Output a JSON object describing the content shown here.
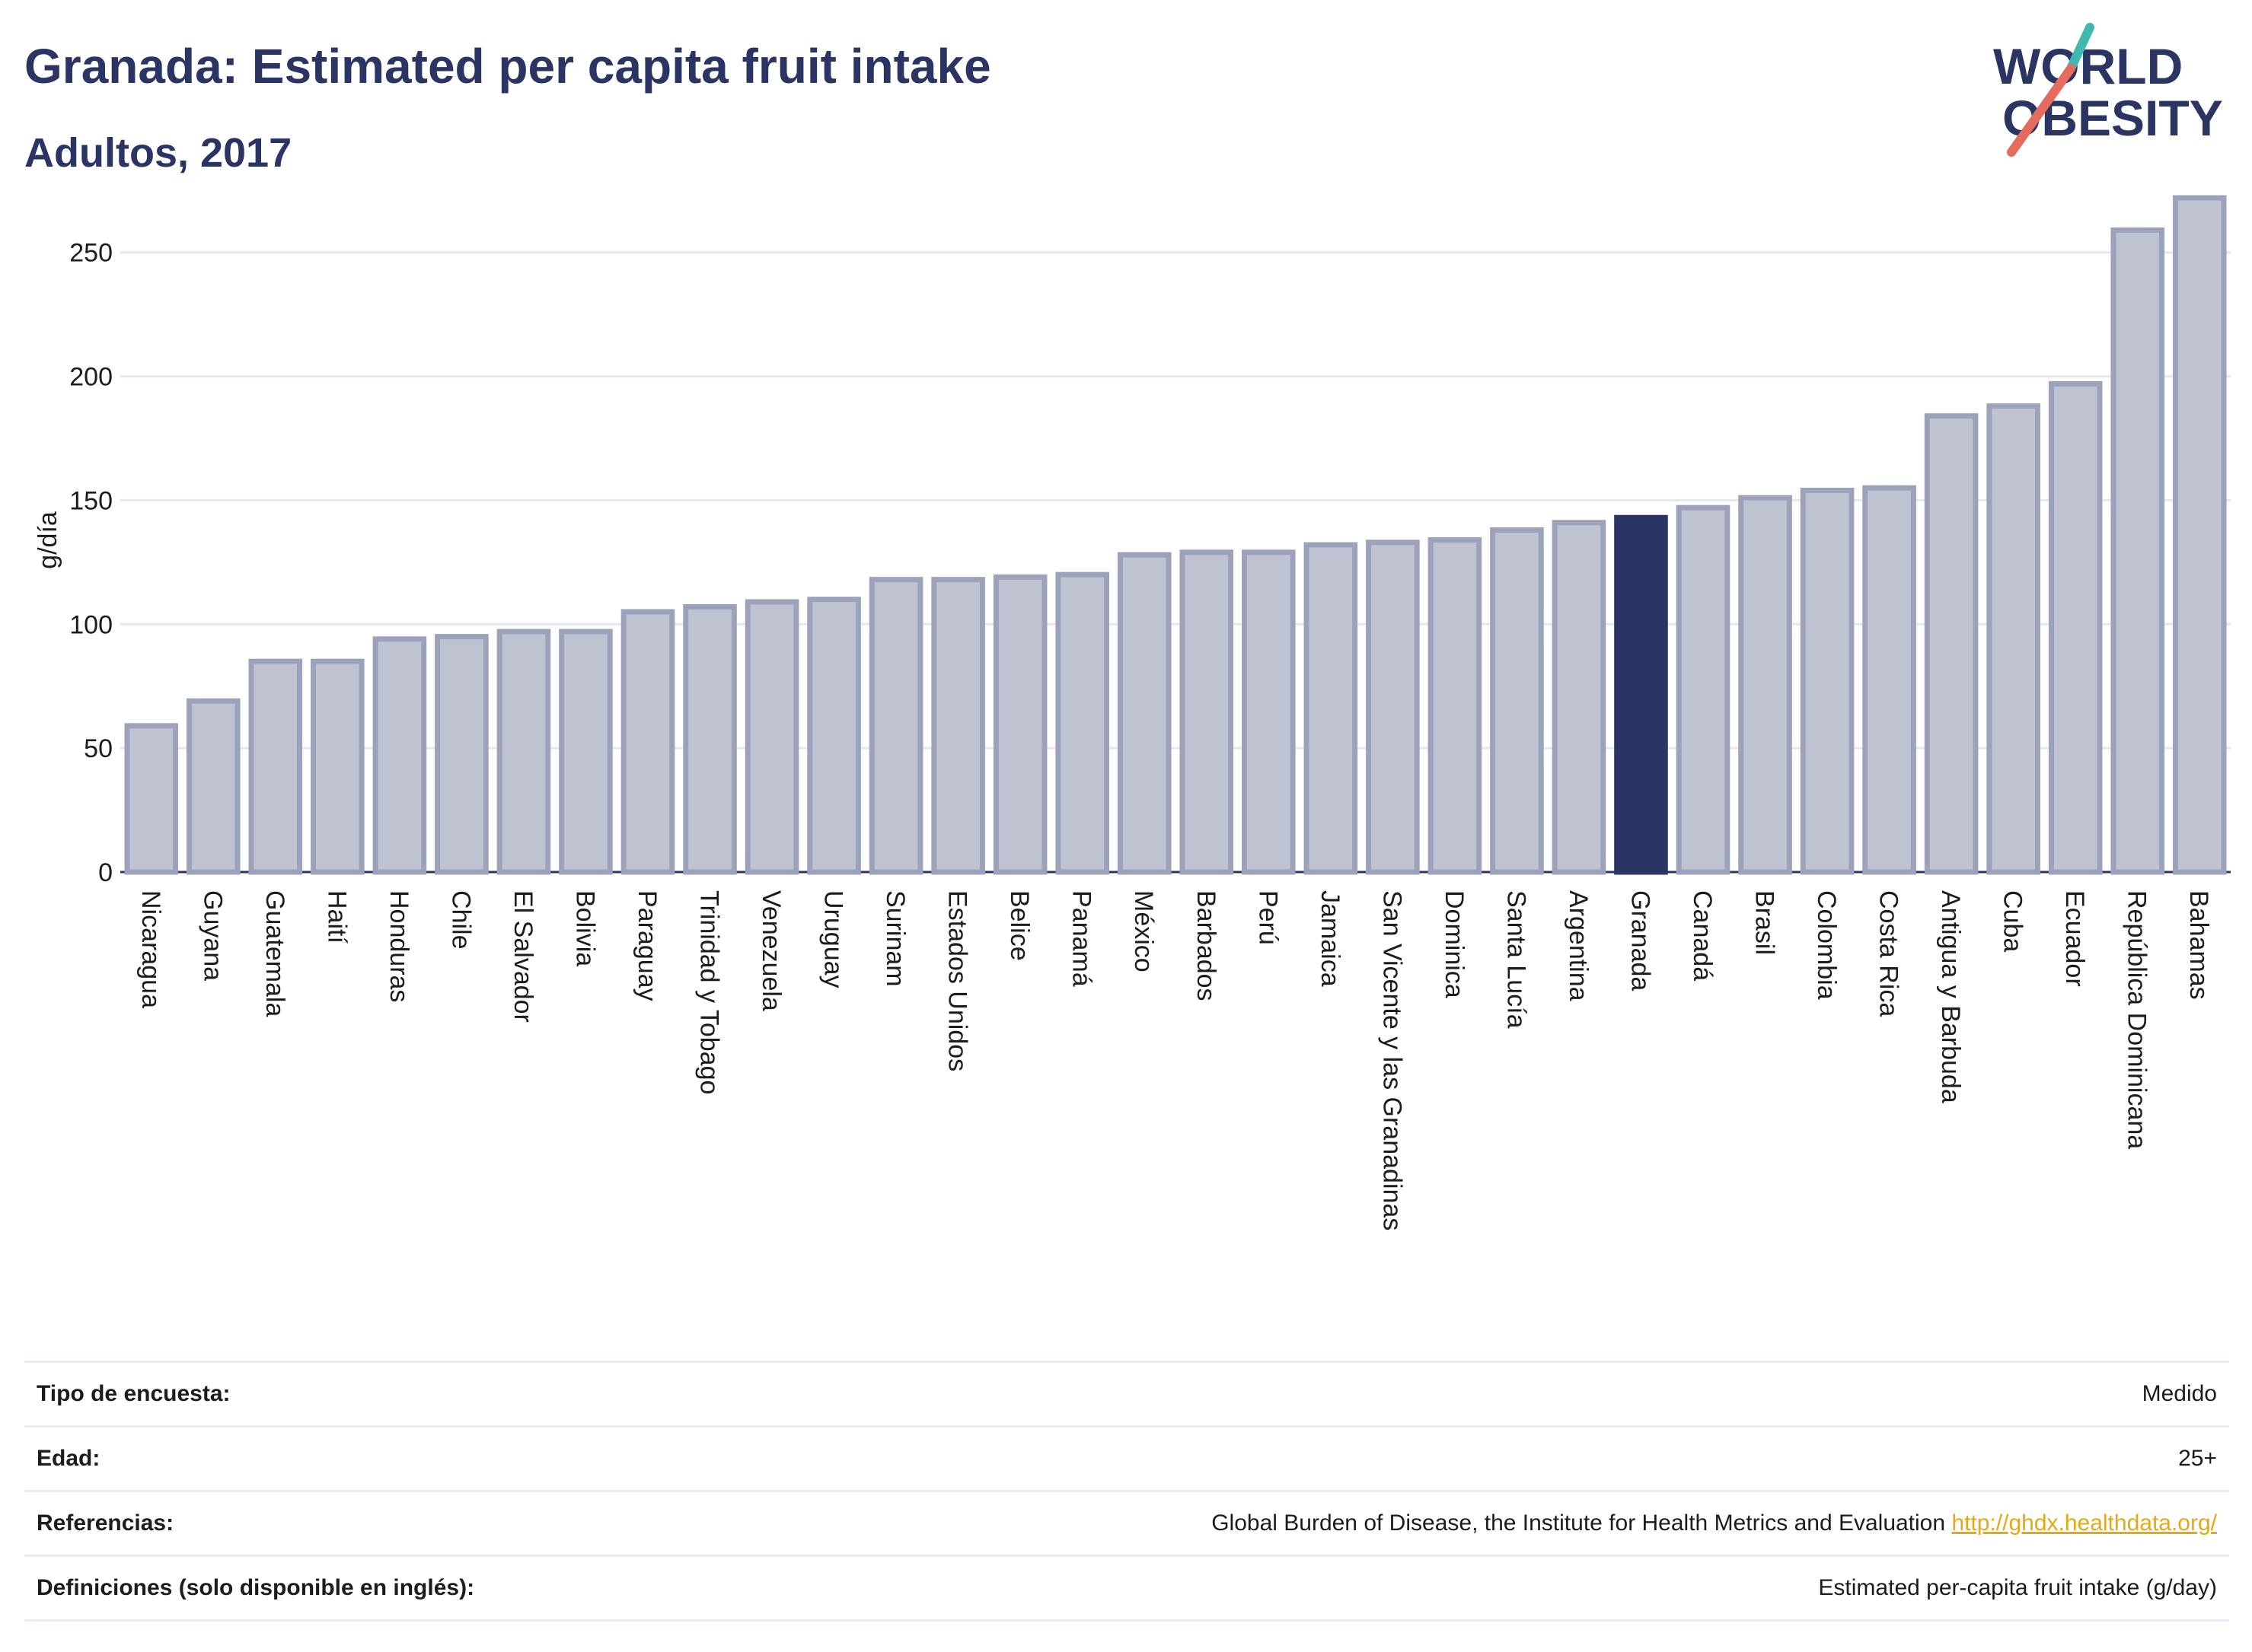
{
  "header": {
    "title": "Granada: Estimated per capita fruit intake",
    "subtitle": "Adultos, 2017"
  },
  "logo": {
    "line1": "WORLD",
    "line2": "OBESITY"
  },
  "colors": {
    "highlight": "#2b3563",
    "bar_fill": "#bfc3d1",
    "bar_stroke": "#9da2bb",
    "title": "#2b3563",
    "link": "#e6a817",
    "logo_teal": "#3fb8b0",
    "logo_coral": "#e46b5d"
  },
  "chart_data": {
    "type": "bar",
    "ylabel": "g/día",
    "ylim": [
      0,
      280
    ],
    "yticks": [
      0,
      50,
      100,
      150,
      200,
      250
    ],
    "grid": true,
    "highlight": "Granada",
    "categories": [
      "Nicaragua",
      "Guyana",
      "Guatemala",
      "Haití",
      "Honduras",
      "Chile",
      "El Salvador",
      "Bolivia",
      "Paraguay",
      "Trinidad y Tobago",
      "Venezuela",
      "Uruguay",
      "Surinam",
      "Estados Unidos",
      "Belice",
      "Panamá",
      "México",
      "Barbados",
      "Perú",
      "Jamaica",
      "San Vicente y las Granadinas",
      "Dominica",
      "Santa Lucía",
      "Argentina",
      "Granada",
      "Canadá",
      "Brasil",
      "Colombia",
      "Costa Rica",
      "Antigua y Barbuda",
      "Cuba",
      "Ecuador",
      "República Dominicana",
      "Bahamas"
    ],
    "values": [
      59,
      69,
      85,
      85,
      94,
      95,
      97,
      97,
      105,
      107,
      109,
      110,
      118,
      118,
      119,
      120,
      128,
      129,
      129,
      132,
      133,
      134,
      138,
      141,
      143,
      147,
      151,
      154,
      155,
      184,
      188,
      197,
      259,
      272
    ]
  },
  "meta": {
    "rows": [
      {
        "label": "Tipo de encuesta:",
        "value": "Medido"
      },
      {
        "label": "Edad:",
        "value": "25+"
      },
      {
        "label": "Referencias:",
        "value": "Global Burden of Disease, the Institute for Health Metrics and Evaluation",
        "link": "http://ghdx.healthdata.org/"
      },
      {
        "label": "Definiciones (solo disponible en inglés):",
        "value": "Estimated per-capita fruit intake (g/day)"
      }
    ]
  }
}
